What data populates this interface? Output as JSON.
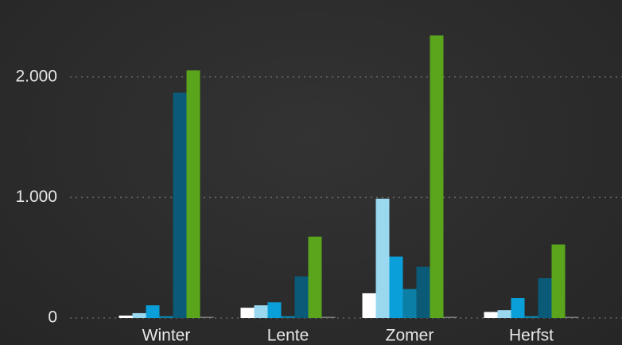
{
  "chart_data": {
    "type": "bar",
    "categories": [
      "Winter",
      "Lente",
      "Zomer",
      "Herfst"
    ],
    "series": [
      {
        "color": "#ffffff",
        "values": [
          20,
          85,
          205,
          50
        ]
      },
      {
        "color": "#9ad8f0",
        "values": [
          40,
          105,
          990,
          65
        ]
      },
      {
        "color": "#0a9fd8",
        "values": [
          105,
          130,
          510,
          165
        ]
      },
      {
        "color": "#0c7fa6",
        "values": [
          15,
          15,
          240,
          15
        ]
      },
      {
        "color": "#0a5a78",
        "values": [
          1870,
          345,
          425,
          330
        ]
      },
      {
        "color": "#5aa51c",
        "values": [
          2055,
          675,
          2345,
          610
        ]
      },
      {
        "color": "#7a7a7a",
        "values": [
          10,
          10,
          10,
          10
        ]
      }
    ],
    "ylim": [
      0,
      2500
    ],
    "yticks": [
      0,
      {
        "value": 1000,
        "label": "1.000"
      },
      {
        "value": 2000,
        "label": "2.000"
      }
    ],
    "grid": true
  }
}
